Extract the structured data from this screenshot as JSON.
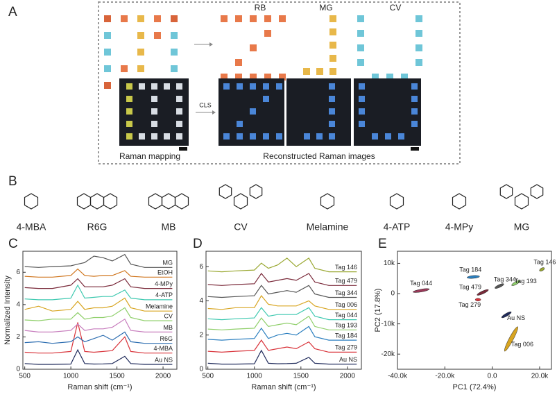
{
  "panel_labels": [
    "A",
    "B",
    "C",
    "D",
    "E"
  ],
  "panel_a": {
    "titles": [
      "RB",
      "MG",
      "CV"
    ],
    "arrow_label": "CLS",
    "captions": [
      "Raman mapping",
      "Reconstructed Raman images"
    ]
  },
  "panel_b": {
    "molecules": [
      "4-MBA",
      "R6G",
      "MB",
      "CV",
      "Melamine",
      "4-ATP",
      "4-MPy",
      "MG"
    ]
  },
  "chart_data": [
    {
      "type": "line",
      "x_label": "Raman shift (cm⁻¹)",
      "y_label": "Normalized Intensity",
      "xlim": [
        480,
        2150
      ],
      "xticks": [
        500,
        1000,
        1500,
        2000
      ],
      "ylim": [
        0,
        7.3
      ],
      "yticks": [
        0,
        2,
        4,
        6
      ],
      "x": [
        500,
        650,
        800,
        1000,
        1075,
        1150,
        1250,
        1350,
        1450,
        1585,
        1650,
        1800,
        2100
      ],
      "series": [
        {
          "name": "Au NS",
          "color": "#1f2a5a",
          "values": [
            0.35,
            0.3,
            0.3,
            0.32,
            1.2,
            0.35,
            0.32,
            0.33,
            0.35,
            0.8,
            0.35,
            0.3,
            0.3
          ]
        },
        {
          "name": "4-MBA",
          "color": "#d9343b",
          "values": [
            1.05,
            1.0,
            1.0,
            1.1,
            2.9,
            1.1,
            1.05,
            1.1,
            1.15,
            2.0,
            1.1,
            1.0,
            1.0
          ]
        },
        {
          "name": "R6G",
          "color": "#2b6cb0",
          "values": [
            1.65,
            1.7,
            1.6,
            1.7,
            2.0,
            1.7,
            1.9,
            2.1,
            1.8,
            2.3,
            1.7,
            1.6,
            1.6
          ]
        },
        {
          "name": "MB",
          "color": "#c77dbd",
          "values": [
            2.4,
            2.3,
            2.3,
            2.4,
            2.8,
            2.4,
            2.5,
            2.5,
            2.6,
            3.1,
            2.4,
            2.3,
            2.3
          ]
        },
        {
          "name": "CV",
          "color": "#8fcf6a",
          "values": [
            3.05,
            3.0,
            3.1,
            3.1,
            3.5,
            3.1,
            3.2,
            3.2,
            3.3,
            3.8,
            3.2,
            3.0,
            3.0
          ]
        },
        {
          "name": "Melamine",
          "color": "#d8a521",
          "values": [
            3.7,
            3.9,
            3.6,
            3.7,
            4.2,
            3.7,
            3.8,
            3.8,
            3.9,
            4.4,
            3.8,
            3.6,
            3.6
          ]
        },
        {
          "name": "4-ATP",
          "color": "#3fc9b0",
          "values": [
            4.35,
            4.3,
            4.3,
            4.4,
            5.2,
            4.4,
            4.45,
            4.5,
            4.5,
            4.9,
            4.4,
            4.3,
            4.3
          ]
        },
        {
          "name": "4-MPy",
          "color": "#7a2a3a",
          "values": [
            5.05,
            5.0,
            5.0,
            5.2,
            5.6,
            5.1,
            5.1,
            5.1,
            5.2,
            5.6,
            5.1,
            5.0,
            5.0
          ]
        },
        {
          "name": "EtOH",
          "color": "#d0761e",
          "values": [
            5.75,
            5.7,
            5.7,
            5.8,
            6.2,
            5.8,
            5.75,
            5.8,
            5.8,
            6.1,
            5.75,
            5.7,
            5.7
          ]
        },
        {
          "name": "MG",
          "color": "#555555",
          "values": [
            6.35,
            6.3,
            6.35,
            6.4,
            6.5,
            6.6,
            7.0,
            6.9,
            6.7,
            7.1,
            6.5,
            6.3,
            6.3
          ]
        }
      ]
    },
    {
      "type": "line",
      "x_label": "Raman shift (cm⁻¹)",
      "xlim": [
        480,
        2150
      ],
      "xticks": [
        500,
        1000,
        1500,
        2000
      ],
      "ylim": [
        0,
        6.9
      ],
      "yticks": [
        0,
        2,
        4,
        6
      ],
      "x": [
        500,
        650,
        800,
        1000,
        1075,
        1150,
        1250,
        1350,
        1450,
        1585,
        1650,
        1800,
        2100
      ],
      "series": [
        {
          "name": "Au NS",
          "color": "#1f2a5a",
          "values": [
            0.35,
            0.3,
            0.3,
            0.32,
            1.1,
            0.35,
            0.32,
            0.33,
            0.35,
            0.7,
            0.35,
            0.3,
            0.3
          ]
        },
        {
          "name": "Tag 279",
          "color": "#d9343b",
          "values": [
            1.05,
            1.0,
            1.05,
            1.1,
            1.7,
            1.1,
            1.2,
            1.3,
            1.2,
            1.6,
            1.2,
            1.0,
            1.0
          ]
        },
        {
          "name": "Tag 184",
          "color": "#2b7fbf",
          "values": [
            1.75,
            1.7,
            1.75,
            1.8,
            2.4,
            1.8,
            2.0,
            2.1,
            2.0,
            2.5,
            1.9,
            1.7,
            1.7
          ]
        },
        {
          "name": "Tag 193",
          "color": "#8fcf6a",
          "values": [
            2.35,
            2.3,
            2.35,
            2.4,
            3.0,
            2.5,
            2.6,
            2.7,
            2.6,
            3.1,
            2.5,
            2.3,
            2.3
          ]
        },
        {
          "name": "Tag 044",
          "color": "#3fc9b0",
          "values": [
            2.95,
            2.9,
            2.95,
            3.0,
            3.6,
            3.1,
            3.2,
            3.2,
            3.2,
            3.6,
            3.1,
            2.9,
            2.9
          ]
        },
        {
          "name": "Tag 006",
          "color": "#d8a521",
          "values": [
            3.55,
            3.5,
            3.6,
            3.6,
            4.3,
            3.8,
            3.7,
            3.7,
            3.7,
            4.0,
            3.7,
            3.5,
            3.5
          ]
        },
        {
          "name": "Tag 344",
          "color": "#555555",
          "values": [
            4.25,
            4.2,
            4.25,
            4.3,
            4.9,
            4.4,
            4.5,
            4.6,
            4.5,
            4.9,
            4.4,
            4.2,
            4.2
          ]
        },
        {
          "name": "Tag 479",
          "color": "#7a2a3a",
          "values": [
            4.95,
            4.9,
            4.95,
            5.0,
            5.6,
            5.1,
            5.2,
            5.3,
            5.2,
            5.6,
            5.1,
            4.9,
            4.9
          ]
        },
        {
          "name": "Tag 146",
          "color": "#9aa832",
          "values": [
            5.75,
            5.7,
            5.75,
            5.8,
            6.2,
            5.9,
            6.1,
            6.5,
            6.0,
            6.5,
            5.9,
            5.7,
            5.7
          ]
        }
      ]
    },
    {
      "type": "scatter",
      "x_label": "PC1 (72.4%)",
      "y_label": "PC2 (17.8%)",
      "xlim": [
        -40000,
        25000
      ],
      "xticks": [
        {
          "value": -40000,
          "label": "-40.0k"
        },
        {
          "value": -20000,
          "label": "-20.0k"
        },
        {
          "value": 0,
          "label": "0.0"
        },
        {
          "value": 20000,
          "label": "20.0k"
        }
      ],
      "ylim": [
        -25000,
        14000
      ],
      "yticks": [
        {
          "value": 10000,
          "label": "10k"
        },
        0,
        {
          "value": -10000,
          "label": "-10k"
        },
        {
          "value": -20000,
          "label": "-20k"
        }
      ],
      "points": [
        {
          "name": "Tag 044",
          "color": "#9b3a5a",
          "x": -30000,
          "y": 1000
        },
        {
          "name": "Tag 184",
          "color": "#2b7fbf",
          "x": -8000,
          "y": 5500
        },
        {
          "name": "Tag 479",
          "color": "#7a2a3a",
          "x": -4000,
          "y": 400
        },
        {
          "name": "Tag 344",
          "color": "#555555",
          "x": 3000,
          "y": 2500
        },
        {
          "name": "Tag 193",
          "color": "#8fcf6a",
          "x": 10000,
          "y": 3500
        },
        {
          "name": "Tag 146",
          "color": "#9aa832",
          "x": 21000,
          "y": 8000
        },
        {
          "name": "Tag 279",
          "color": "#d9343b",
          "x": -6000,
          "y": -2000
        },
        {
          "name": "Au NS",
          "color": "#1f2a5a",
          "x": 6000,
          "y": -7000
        },
        {
          "name": "Tag 006",
          "color": "#d8a521",
          "x": 8000,
          "y": -15000
        }
      ]
    }
  ]
}
